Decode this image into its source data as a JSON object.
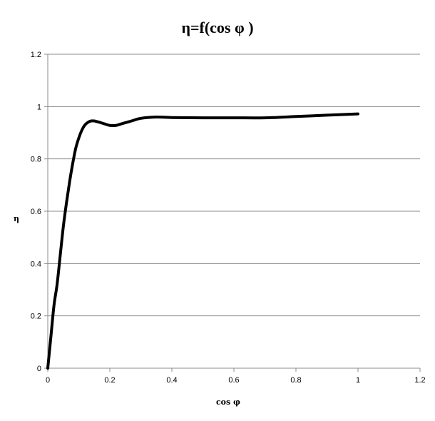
{
  "chart_data": {
    "type": "line",
    "title": "η=f(cos φ )",
    "xlabel": "cos φ",
    "ylabel": "η",
    "xlim": [
      0,
      1.2
    ],
    "ylim": [
      0,
      1.2
    ],
    "x_ticks": [
      "0",
      "0.2",
      "0.4",
      "0.6",
      "0.8",
      "1",
      "1.2"
    ],
    "y_ticks": [
      "0",
      "0.2",
      "0.4",
      "0.6",
      "0.8",
      "1",
      "1.2"
    ],
    "grid": "horizontal",
    "legend": "none",
    "line_color": "#000000",
    "series": [
      {
        "x": [
          0,
          0.01,
          0.02,
          0.03,
          0.04,
          0.05,
          0.06,
          0.07,
          0.08,
          0.09,
          0.1,
          0.11,
          0.12,
          0.13,
          0.14,
          0.15,
          0.16,
          0.18,
          0.2,
          0.22,
          0.24,
          0.27,
          0.3,
          0.35,
          0.4,
          0.5,
          0.6,
          0.7,
          0.8,
          0.9,
          1.0
        ],
        "y": [
          0,
          0.12,
          0.24,
          0.32,
          0.43,
          0.54,
          0.63,
          0.71,
          0.78,
          0.84,
          0.88,
          0.91,
          0.93,
          0.94,
          0.945,
          0.945,
          0.942,
          0.935,
          0.928,
          0.928,
          0.935,
          0.945,
          0.955,
          0.96,
          0.958,
          0.957,
          0.957,
          0.957,
          0.962,
          0.967,
          0.972
        ]
      }
    ]
  }
}
